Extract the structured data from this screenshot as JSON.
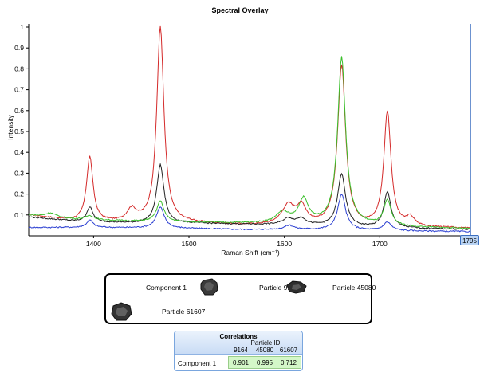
{
  "chart_data": {
    "type": "line",
    "title": "Spectral Overlay",
    "xlabel": "Raman Shift (cm⁻¹)",
    "ylabel": "Intensity",
    "xlim": [
      1332,
      1795
    ],
    "ylim": [
      0,
      1.0
    ],
    "x_ticks": [
      1400,
      1500,
      1600,
      1700
    ],
    "y_ticks": [
      0.1,
      0.2,
      0.3,
      0.4,
      0.5,
      0.6,
      0.7,
      0.8,
      0.9,
      1
    ],
    "grid": false,
    "legend_position": "bottom",
    "cursor_readout": "1795",
    "series": [
      {
        "name": "Component 1",
        "color": "#d42a2a",
        "baseline": [
          [
            1332,
            0.1
          ],
          [
            1380,
            0.07
          ],
          [
            1440,
            0.06
          ],
          [
            1500,
            0.06
          ],
          [
            1560,
            0.05
          ],
          [
            1620,
            0.05
          ],
          [
            1680,
            0.04
          ],
          [
            1740,
            0.04
          ],
          [
            1795,
            0.035
          ]
        ],
        "peaks": [
          [
            1396,
            0.31,
            4
          ],
          [
            1470,
            0.94,
            4.5
          ],
          [
            1440,
            0.06,
            6
          ],
          [
            1604,
            0.09,
            8
          ],
          [
            1618,
            0.08,
            6
          ],
          [
            1660,
            0.77,
            5
          ],
          [
            1708,
            0.55,
            4.5
          ],
          [
            1732,
            0.04,
            5
          ]
        ]
      },
      {
        "name": "Particle 9164",
        "color": "#2b3fd1",
        "baseline": [
          [
            1332,
            0.04
          ],
          [
            1400,
            0.04
          ],
          [
            1500,
            0.035
          ],
          [
            1560,
            0.03
          ],
          [
            1620,
            0.03
          ],
          [
            1700,
            0.025
          ],
          [
            1795,
            0.02
          ]
        ],
        "peaks": [
          [
            1396,
            0.035,
            4
          ],
          [
            1470,
            0.1,
            5
          ],
          [
            1605,
            0.02,
            6
          ],
          [
            1660,
            0.17,
            5
          ],
          [
            1708,
            0.04,
            5
          ]
        ]
      },
      {
        "name": "Particle 45080",
        "color": "#222222",
        "baseline": [
          [
            1332,
            0.09
          ],
          [
            1380,
            0.07
          ],
          [
            1440,
            0.06
          ],
          [
            1500,
            0.06
          ],
          [
            1560,
            0.055
          ],
          [
            1620,
            0.05
          ],
          [
            1680,
            0.04
          ],
          [
            1740,
            0.035
          ],
          [
            1795,
            0.03
          ]
        ],
        "peaks": [
          [
            1396,
            0.07,
            4
          ],
          [
            1470,
            0.28,
            4.5
          ],
          [
            1604,
            0.03,
            7
          ],
          [
            1618,
            0.03,
            6
          ],
          [
            1660,
            0.25,
            5
          ],
          [
            1708,
            0.17,
            4.5
          ]
        ]
      },
      {
        "name": "Particle 61607",
        "color": "#3bbf2c",
        "baseline": [
          [
            1332,
            0.1
          ],
          [
            1380,
            0.08
          ],
          [
            1440,
            0.07
          ],
          [
            1500,
            0.065
          ],
          [
            1560,
            0.06
          ],
          [
            1620,
            0.06
          ],
          [
            1680,
            0.05
          ],
          [
            1740,
            0.04
          ],
          [
            1795,
            0.035
          ]
        ],
        "peaks": [
          [
            1355,
            0.02,
            6
          ],
          [
            1396,
            0.02,
            5
          ],
          [
            1470,
            0.1,
            4.5
          ],
          [
            1598,
            0.05,
            8
          ],
          [
            1620,
            0.11,
            6
          ],
          [
            1660,
            0.8,
            5
          ],
          [
            1708,
            0.12,
            4.5
          ]
        ]
      }
    ]
  },
  "legend": {
    "entries": [
      {
        "label": "Component 1",
        "color": "#d42a2a",
        "thumb": "particle-thumbnail-icon"
      },
      {
        "label": "Particle 9164",
        "color": "#2b3fd1",
        "thumb": "particle-thumbnail-icon"
      },
      {
        "label": "Particle 45080",
        "color": "#222222",
        "thumb": "particle-thumbnail-icon"
      },
      {
        "label": "Particle 61607",
        "color": "#3bbf2c",
        "thumb": ""
      }
    ]
  },
  "correlations": {
    "title": "Correlations",
    "subtitle": "Particle ID",
    "columns": [
      "9164",
      "45080",
      "61607"
    ],
    "row_label": "Component 1",
    "values": [
      "0.901",
      "0.995",
      "0.712"
    ]
  }
}
